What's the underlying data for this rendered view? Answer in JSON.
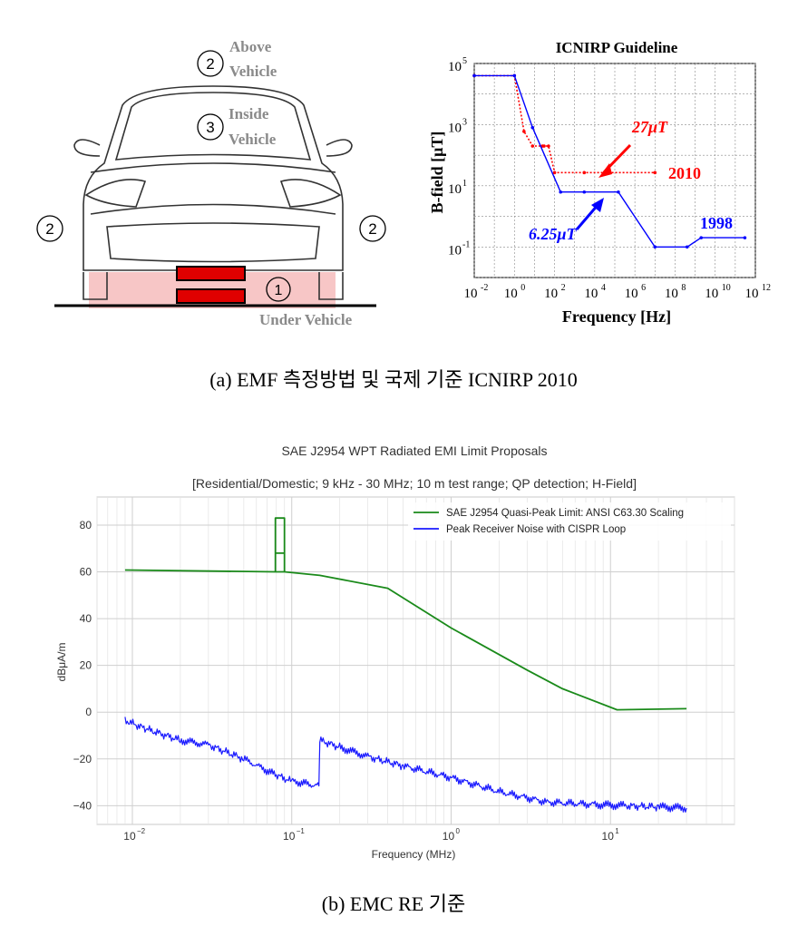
{
  "vehicle": {
    "zones": [
      {
        "num": "2",
        "text": [
          "Above",
          "Vehicle"
        ]
      },
      {
        "num": "3",
        "text": [
          "Inside",
          "Vehicle"
        ]
      },
      {
        "num": "2",
        "text": []
      },
      {
        "num": "2",
        "text": []
      },
      {
        "num": "1",
        "text": []
      }
    ],
    "under_label": "Under Vehicle",
    "colors": {
      "pad": "#f7c6c6",
      "coil": "#e00000",
      "label": "#8a8a8a"
    }
  },
  "caption_a": "(a) EMF 측정방법 및 국제 기준 ICNIRP 2010",
  "caption_b": "(b) EMC RE 기준",
  "chart_data": [
    {
      "type": "line",
      "title": "ICNIRP Guideline",
      "xlabel": "Frequency [Hz]",
      "ylabel": "B-field [μT]",
      "x_scale": "log",
      "y_scale": "log",
      "xlim": [
        0.01,
        1000000000000
      ],
      "ylim": [
        0.01,
        100000
      ],
      "x_ticks": [
        {
          "value": 0.01,
          "base": "10",
          "exp": "-2"
        },
        {
          "value": 1,
          "base": "10",
          "exp": "0"
        },
        {
          "value": 100,
          "base": "10",
          "exp": "2"
        },
        {
          "value": 10000,
          "base": "10",
          "exp": "4"
        },
        {
          "value": 1000000,
          "base": "10",
          "exp": "6"
        },
        {
          "value": 100000000,
          "base": "10",
          "exp": "8"
        },
        {
          "value": 10000000000,
          "base": "10",
          "exp": "10"
        },
        {
          "value": 1000000000000,
          "base": "10",
          "exp": "12"
        }
      ],
      "y_ticks": [
        {
          "value": 0.1,
          "base": "10",
          "exp": "-1"
        },
        {
          "value": 10,
          "base": "10",
          "exp": "1"
        },
        {
          "value": 1000,
          "base": "10",
          "exp": "3"
        },
        {
          "value": 100000,
          "base": "10",
          "exp": "5"
        }
      ],
      "grid": true,
      "series": [
        {
          "name": "2010",
          "color": "#ff0000",
          "style": "dotted",
          "points": [
            [
              0.01,
              40000
            ],
            [
              1,
              40000
            ],
            [
              3,
              600
            ],
            [
              8,
              200
            ],
            [
              25,
              200
            ],
            [
              30,
              200
            ],
            [
              50,
              200
            ],
            [
              100,
              27
            ],
            [
              3000,
              27
            ],
            [
              10000000,
              27
            ]
          ]
        },
        {
          "name": "1998",
          "color": "#0000ff",
          "style": "solid",
          "points": [
            [
              0.01,
              40000
            ],
            [
              1,
              40000
            ],
            [
              8,
              800
            ],
            [
              200,
              6.25
            ],
            [
              3000,
              6.25
            ],
            [
              150000,
              6.25
            ],
            [
              10000000,
              0.1
            ],
            [
              400000000,
              0.1
            ],
            [
              2000000000,
              0.2
            ],
            [
              300000000000,
              0.2
            ]
          ]
        }
      ],
      "annotations": [
        {
          "text": "27μT",
          "color": "#ff0000"
        },
        {
          "text": "6.25μT",
          "color": "#0000ff"
        },
        {
          "text": "2010",
          "color": "#ff0000"
        },
        {
          "text": "1998",
          "color": "#0000ff"
        }
      ]
    },
    {
      "type": "line",
      "title": "SAE J2954 WPT Radiated EMI Limit Proposals",
      "subtitle": "[Residential/Domestic; 9 kHz - 30 MHz; 10 m test range; QP detection; H-Field]",
      "xlabel": "Frequency (MHz)",
      "ylabel": "dBμA/m",
      "x_scale": "log",
      "xlim": [
        0.006,
        60
      ],
      "ylim": [
        -48,
        92
      ],
      "x_ticks": [
        {
          "value": 0.01,
          "base": "10",
          "exp": "−2"
        },
        {
          "value": 0.1,
          "base": "10",
          "exp": "−1"
        },
        {
          "value": 1,
          "base": "10",
          "exp": "0"
        },
        {
          "value": 10,
          "base": "10",
          "exp": "1"
        }
      ],
      "y_ticks": [
        -40,
        -20,
        0,
        20,
        40,
        60,
        80
      ],
      "grid": true,
      "legend": "top-right",
      "series": [
        {
          "name": "SAE J2954 Quasi-Peak Limit: ANSI C63.30 Scaling",
          "color": "#1a8a1a",
          "points": [
            [
              0.009,
              60.8
            ],
            [
              0.079,
              60
            ],
            [
              0.079,
              83
            ],
            [
              0.09,
              83
            ],
            [
              0.09,
              60
            ],
            [
              0.079,
              60
            ],
            [
              0.079,
              68
            ],
            [
              0.09,
              68
            ],
            [
              0.09,
              60
            ],
            [
              0.15,
              58.5
            ],
            [
              0.4,
              53
            ],
            [
              1,
              36
            ],
            [
              3,
              18
            ],
            [
              5,
              10
            ],
            [
              11,
              1
            ],
            [
              30,
              1.5
            ]
          ]
        },
        {
          "name": "Peak Receiver Noise with CISPR Loop",
          "color": "#1a1aff",
          "points": [
            [
              0.009,
              -3.5
            ],
            [
              0.012,
              -7
            ],
            [
              0.02,
              -12
            ],
            [
              0.03,
              -14
            ],
            [
              0.05,
              -20
            ],
            [
              0.08,
              -27
            ],
            [
              0.1,
              -29.5
            ],
            [
              0.148,
              -31.5
            ],
            [
              0.15,
              -12
            ],
            [
              0.2,
              -15
            ],
            [
              0.3,
              -19
            ],
            [
              0.5,
              -23
            ],
            [
              1,
              -28
            ],
            [
              2,
              -34
            ],
            [
              4,
              -38.5
            ],
            [
              8,
              -39.5
            ],
            [
              12,
              -40
            ],
            [
              20,
              -40.5
            ],
            [
              30,
              -41
            ]
          ]
        }
      ]
    }
  ]
}
